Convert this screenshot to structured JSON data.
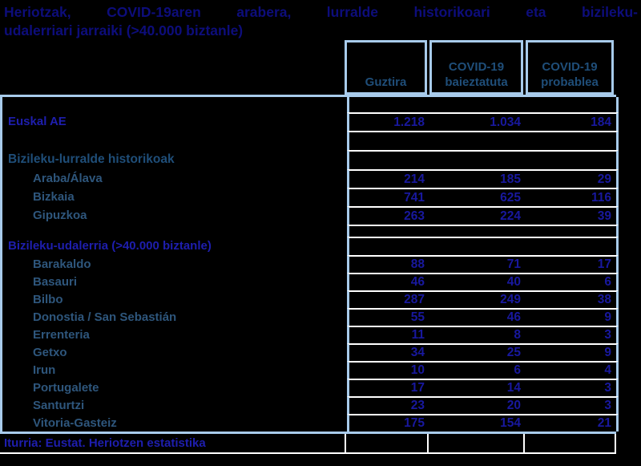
{
  "title": {
    "line1": "Heriotzak, COVID-19aren arabera, lurralde historikoari eta bizileku-",
    "line2": "udalerriari jarraiki (>40.000 biztanle)"
  },
  "table": {
    "columns": [
      "Guztira",
      "COVID-19 baieztatuta",
      "COVID-19 probablea"
    ],
    "rows": [
      {
        "type": "spacer",
        "label": "",
        "values": [
          "",
          "",
          ""
        ]
      },
      {
        "type": "total",
        "label": "Euskal AE",
        "values": [
          "1.218",
          "1.034",
          "184"
        ]
      },
      {
        "type": "spacer-lg",
        "label": "",
        "values": [
          "",
          "",
          ""
        ]
      },
      {
        "type": "section",
        "label": "Bizileku-lurralde historikoak",
        "values": [
          "",
          "",
          ""
        ]
      },
      {
        "type": "territory",
        "label": "Araba/Álava",
        "values": [
          "214",
          "185",
          "29"
        ]
      },
      {
        "type": "territory",
        "label": "Bizkaia",
        "values": [
          "741",
          "625",
          "116"
        ]
      },
      {
        "type": "territory",
        "label": "Gipuzkoa",
        "values": [
          "263",
          "224",
          "39"
        ]
      },
      {
        "type": "spacer-sm",
        "label": "",
        "values": [
          "",
          "",
          ""
        ]
      },
      {
        "type": "section-alt",
        "label": "Bizileku-udalerria (>40.000 biztanle)",
        "values": [
          "",
          "",
          ""
        ]
      },
      {
        "type": "municipality",
        "label": "Barakaldo",
        "values": [
          "88",
          "71",
          "17"
        ]
      },
      {
        "type": "municipality",
        "label": "Basauri",
        "values": [
          "46",
          "40",
          "6"
        ]
      },
      {
        "type": "municipality",
        "label": "Bilbo",
        "values": [
          "287",
          "249",
          "38"
        ]
      },
      {
        "type": "municipality",
        "label": "Donostia / San Sebastián",
        "values": [
          "55",
          "46",
          "9"
        ]
      },
      {
        "type": "municipality",
        "label": "Errenteria",
        "values": [
          "11",
          "8",
          "3"
        ]
      },
      {
        "type": "municipality",
        "label": "Getxo",
        "values": [
          "34",
          "25",
          "9"
        ]
      },
      {
        "type": "municipality",
        "label": "Irun",
        "values": [
          "10",
          "6",
          "4"
        ]
      },
      {
        "type": "municipality",
        "label": "Portugalete",
        "values": [
          "17",
          "14",
          "3"
        ]
      },
      {
        "type": "municipality",
        "label": "Santurtzi",
        "values": [
          "23",
          "20",
          "3"
        ]
      },
      {
        "type": "municipality",
        "label": "Vitoria-Gasteiz",
        "values": [
          "175",
          "154",
          "21"
        ]
      }
    ],
    "footer_source": "Iturria: Eustat. Heriotzen estatistika"
  },
  "colors": {
    "background": "#000000",
    "title_navy": "#0d0d7b",
    "accent_blue": "#1e1eae",
    "value_navy": "#18189e",
    "steel_blue": "#1f4e79",
    "row_label_blue": "#2e567c",
    "border_light_blue": "#a8cbeb",
    "border_white": "#ffffff"
  },
  "chart_data": {
    "type": "table",
    "title": "Heriotzak, COVID-19aren arabera, lurralde historikoari eta bizileku-udalerriari jarraiki (>40.000 biztanle)",
    "columns": [
      "Guztira",
      "COVID-19 baieztatuta",
      "COVID-19 probablea"
    ],
    "rows": [
      {
        "group": "total",
        "label": "Euskal AE",
        "values": [
          1218,
          1034,
          184
        ]
      },
      {
        "group": "Bizileku-lurralde historikoak",
        "label": "Araba/Álava",
        "values": [
          214,
          185,
          29
        ]
      },
      {
        "group": "Bizileku-lurralde historikoak",
        "label": "Bizkaia",
        "values": [
          741,
          625,
          116
        ]
      },
      {
        "group": "Bizileku-lurralde historikoak",
        "label": "Gipuzkoa",
        "values": [
          263,
          224,
          39
        ]
      },
      {
        "group": "Bizileku-udalerria (>40.000 biztanle)",
        "label": "Barakaldo",
        "values": [
          88,
          71,
          17
        ]
      },
      {
        "group": "Bizileku-udalerria (>40.000 biztanle)",
        "label": "Basauri",
        "values": [
          46,
          40,
          6
        ]
      },
      {
        "group": "Bizileku-udalerria (>40.000 biztanle)",
        "label": "Bilbo",
        "values": [
          287,
          249,
          38
        ]
      },
      {
        "group": "Bizileku-udalerria (>40.000 biztanle)",
        "label": "Donostia / San Sebastián",
        "values": [
          55,
          46,
          9
        ]
      },
      {
        "group": "Bizileku-udalerria (>40.000 biztanle)",
        "label": "Errenteria",
        "values": [
          11,
          8,
          3
        ]
      },
      {
        "group": "Bizileku-udalerria (>40.000 biztanle)",
        "label": "Getxo",
        "values": [
          34,
          25,
          9
        ]
      },
      {
        "group": "Bizileku-udalerria (>40.000 biztanle)",
        "label": "Irun",
        "values": [
          10,
          6,
          4
        ]
      },
      {
        "group": "Bizileku-udalerria (>40.000 biztanle)",
        "label": "Portugalete",
        "values": [
          17,
          14,
          3
        ]
      },
      {
        "group": "Bizileku-udalerria (>40.000 biztanle)",
        "label": "Santurtzi",
        "values": [
          23,
          20,
          3
        ]
      },
      {
        "group": "Bizileku-udalerria (>40.000 biztanle)",
        "label": "Vitoria-Gasteiz",
        "values": [
          175,
          154,
          21
        ]
      }
    ],
    "source": "Iturria: Eustat. Heriotzen estatistika"
  }
}
